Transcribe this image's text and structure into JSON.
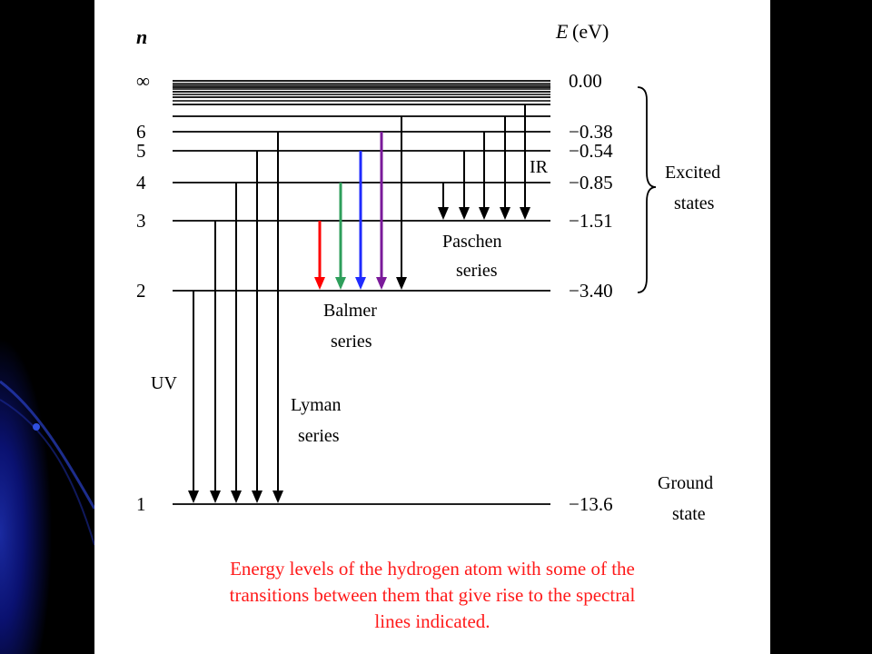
{
  "colors": {
    "page_background": "#000000",
    "panel": "#ffffff",
    "caption": "#ff1a1a",
    "balmer_alpha": "#ff0000",
    "balmer_beta": "#2e9e5b",
    "balmer_gamma": "#1f2bff",
    "balmer_delta": "#7a1a9a",
    "arrow_default": "#000000"
  },
  "axis": {
    "n_header": "n",
    "energy_header_italic": "E",
    "energy_header_unit": "(eV)"
  },
  "levels": [
    {
      "n": 1,
      "n_label": "1",
      "energy": -13.6,
      "energy_label": "−13.6"
    },
    {
      "n": 2,
      "n_label": "2",
      "energy": -3.4,
      "energy_label": "−3.40"
    },
    {
      "n": 3,
      "n_label": "3",
      "energy": -1.51,
      "energy_label": "−1.51"
    },
    {
      "n": 4,
      "n_label": "4",
      "energy": -0.85,
      "energy_label": "−0.85"
    },
    {
      "n": 5,
      "n_label": "5",
      "energy": -0.54,
      "energy_label": "−0.54"
    },
    {
      "n": 6,
      "n_label": "6",
      "energy": -0.38,
      "energy_label": "−0.38"
    },
    {
      "n": 7,
      "n_label": "",
      "energy": null,
      "energy_label": ""
    },
    {
      "n": 8,
      "n_label": "",
      "energy": null,
      "energy_label": ""
    },
    {
      "n": 9,
      "n_label": "",
      "energy": null,
      "energy_label": ""
    },
    {
      "n": 10,
      "n_label": "",
      "energy": null,
      "energy_label": ""
    },
    {
      "n": 11,
      "n_label": "",
      "energy": null,
      "energy_label": ""
    },
    {
      "n": "infinity",
      "n_label": "∞",
      "energy": 0.0,
      "energy_label": "0.00"
    }
  ],
  "series": [
    {
      "name": "Lyman",
      "label_line1": "Lyman",
      "label_line2": "series",
      "region_label": "UV",
      "final_level": 1,
      "transitions": [
        {
          "from": 2,
          "to": 1,
          "color": "#000000",
          "bold": false
        },
        {
          "from": 3,
          "to": 1,
          "color": "#000000",
          "bold": false
        },
        {
          "from": 4,
          "to": 1,
          "color": "#000000",
          "bold": false
        },
        {
          "from": 5,
          "to": 1,
          "color": "#000000",
          "bold": false
        },
        {
          "from": 6,
          "to": 1,
          "color": "#000000",
          "bold": false
        }
      ]
    },
    {
      "name": "Balmer",
      "label_line1": "Balmer",
      "label_line2": "series",
      "region_label": "",
      "final_level": 2,
      "transitions": [
        {
          "from": 3,
          "to": 2,
          "color": "#ff0000",
          "bold": true
        },
        {
          "from": 4,
          "to": 2,
          "color": "#2e9e5b",
          "bold": true
        },
        {
          "from": 5,
          "to": 2,
          "color": "#1f2bff",
          "bold": true
        },
        {
          "from": 6,
          "to": 2,
          "color": "#7a1a9a",
          "bold": true
        },
        {
          "from": 7,
          "to": 2,
          "color": "#000000",
          "bold": false
        }
      ]
    },
    {
      "name": "Paschen",
      "label_line1": "Paschen",
      "label_line2": "series",
      "region_label": "IR",
      "final_level": 3,
      "transitions": [
        {
          "from": 4,
          "to": 3,
          "color": "#000000",
          "bold": false
        },
        {
          "from": 5,
          "to": 3,
          "color": "#000000",
          "bold": false
        },
        {
          "from": 6,
          "to": 3,
          "color": "#000000",
          "bold": false
        },
        {
          "from": 7,
          "to": 3,
          "color": "#000000",
          "bold": false
        },
        {
          "from": 8,
          "to": 3,
          "color": "#000000",
          "bold": false
        }
      ]
    }
  ],
  "state_labels": {
    "excited_line1": "Excited",
    "excited_line2": "states",
    "ground_line1": "Ground",
    "ground_line2": "state"
  },
  "caption": {
    "line1": "Energy levels of the hydrogen atom with some of the",
    "line2": "transitions between them that give rise to the spectral",
    "line3": "lines indicated."
  }
}
